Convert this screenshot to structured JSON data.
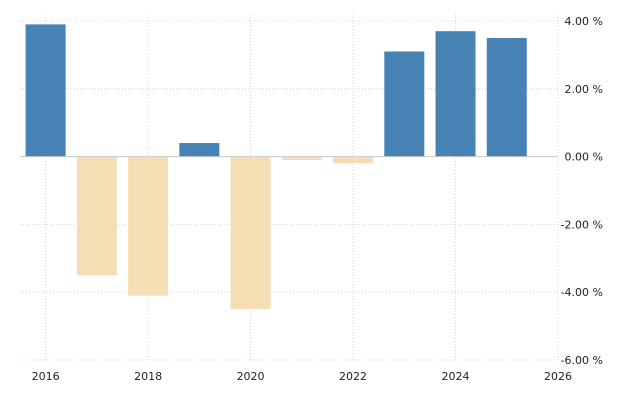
{
  "chart_data": {
    "type": "bar",
    "categories": [
      "2016",
      "2017",
      "2018",
      "2019",
      "2020",
      "2021",
      "2022",
      "2023",
      "2024",
      "2025"
    ],
    "values": [
      3.9,
      -3.5,
      -4.1,
      0.4,
      -4.5,
      -0.1,
      -0.2,
      3.1,
      3.7,
      3.5
    ],
    "title": "",
    "xlabel": "",
    "ylabel": "",
    "ylim": [
      -6,
      4
    ],
    "xlim": [
      2015.5,
      2026
    ],
    "y_ticks": [
      4,
      2,
      0,
      -2,
      -4,
      -6
    ],
    "y_tick_labels": [
      "4.00 %",
      "2.00 %",
      "0.00 %",
      "-2.00 %",
      "-4.00 %",
      "-6.00 %"
    ],
    "x_ticks": [
      2016,
      2018,
      2020,
      2022,
      2024,
      2026
    ],
    "x_tick_labels": [
      "2016",
      "2018",
      "2020",
      "2022",
      "2024",
      "2026"
    ],
    "positive_color": "#4682b4",
    "negative_color": "#f5deb3",
    "grid": true,
    "y_axis_position": "right"
  }
}
